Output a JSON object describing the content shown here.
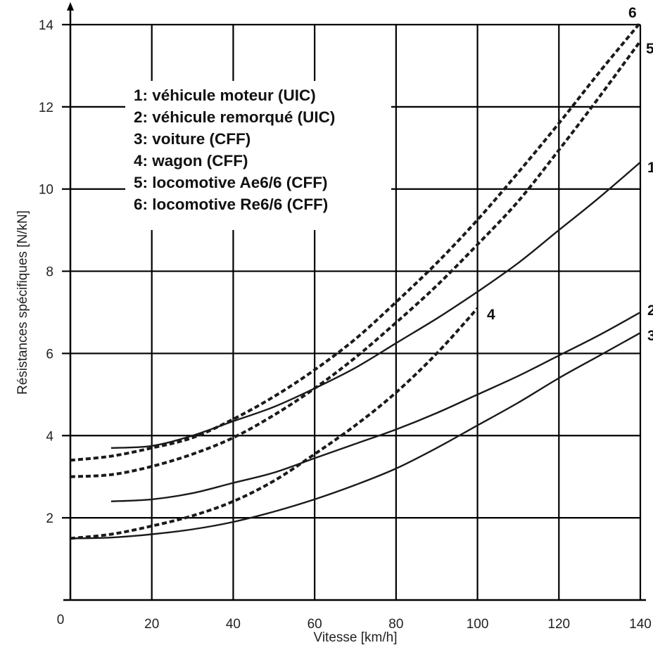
{
  "chart_data": {
    "type": "line",
    "xlabel": "Vitesse [km/h]",
    "ylabel": "Résistances spécifiques  [N/kN]",
    "xlim": [
      0,
      140
    ],
    "ylim": [
      0,
      14
    ],
    "grid": true,
    "x_ticks": [
      0,
      20,
      40,
      60,
      80,
      100,
      120,
      140
    ],
    "y_ticks": [
      2,
      4,
      6,
      8,
      10,
      12,
      14
    ],
    "legend": [
      "1: véhicule moteur (UIC)",
      "2: véhicule remorqué (UIC)",
      "3: voiture (CFF)",
      "4: wagon (CFF)",
      "5: locomotive Ae6/6 (CFF)",
      "6: locomotive Re6/6 (CFF)"
    ],
    "legend_position": "top-left",
    "series": [
      {
        "name": "1",
        "style": "solid",
        "x": [
          10,
          20,
          30,
          40,
          50,
          60,
          70,
          80,
          90,
          100,
          110,
          120,
          130,
          140
        ],
        "y": [
          3.7,
          3.75,
          4.0,
          4.35,
          4.7,
          5.15,
          5.65,
          6.25,
          6.85,
          7.5,
          8.2,
          9.0,
          9.8,
          10.65
        ]
      },
      {
        "name": "2",
        "style": "solid",
        "x": [
          10,
          20,
          30,
          40,
          50,
          60,
          70,
          80,
          90,
          100,
          110,
          120,
          130,
          140
        ],
        "y": [
          2.4,
          2.45,
          2.6,
          2.85,
          3.1,
          3.45,
          3.8,
          4.15,
          4.55,
          5.0,
          5.45,
          5.95,
          6.45,
          7.0
        ]
      },
      {
        "name": "3",
        "style": "solid",
        "x": [
          0,
          10,
          20,
          30,
          40,
          50,
          60,
          70,
          80,
          90,
          100,
          110,
          120,
          130,
          140
        ],
        "y": [
          1.5,
          1.52,
          1.6,
          1.72,
          1.9,
          2.15,
          2.45,
          2.8,
          3.2,
          3.7,
          4.25,
          4.8,
          5.4,
          5.95,
          6.5
        ]
      },
      {
        "name": "4",
        "style": "dashed",
        "x": [
          0,
          10,
          20,
          30,
          40,
          50,
          60,
          70,
          80,
          90,
          100
        ],
        "y": [
          1.5,
          1.6,
          1.8,
          2.05,
          2.4,
          2.9,
          3.55,
          4.25,
          5.05,
          6.0,
          7.1
        ]
      },
      {
        "name": "5",
        "style": "dashed",
        "x": [
          0,
          10,
          20,
          30,
          40,
          50,
          60,
          70,
          80,
          90,
          100,
          110,
          120,
          130,
          140
        ],
        "y": [
          3.0,
          3.05,
          3.25,
          3.55,
          3.95,
          4.5,
          5.15,
          5.9,
          6.75,
          7.65,
          8.65,
          9.7,
          10.95,
          12.25,
          13.6
        ]
      },
      {
        "name": "6",
        "style": "dashed",
        "x": [
          0,
          10,
          20,
          30,
          40,
          50,
          60,
          70,
          80,
          90,
          100,
          110,
          120,
          130,
          140
        ],
        "y": [
          3.4,
          3.5,
          3.7,
          3.95,
          4.4,
          4.95,
          5.6,
          6.35,
          7.25,
          8.2,
          9.25,
          10.4,
          11.6,
          12.85,
          14.05
        ]
      }
    ]
  }
}
